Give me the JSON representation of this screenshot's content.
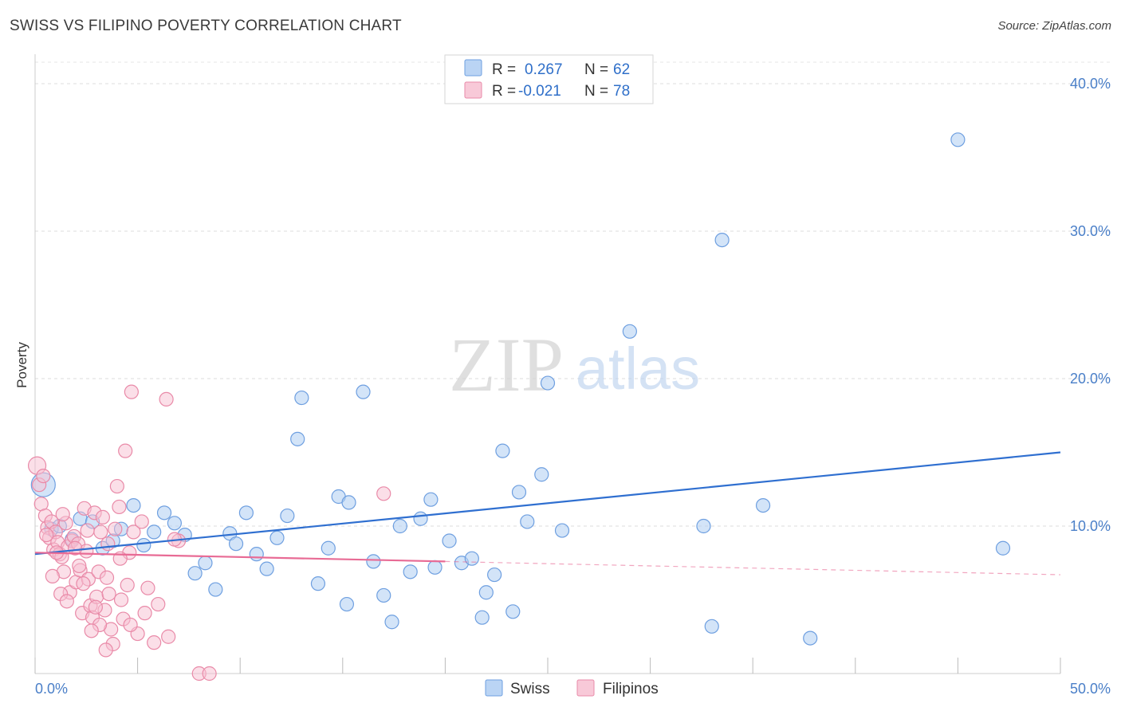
{
  "title": "SWISS VS FILIPINO POVERTY CORRELATION CHART",
  "source": "Source: ZipAtlas.com",
  "watermark": {
    "zip": "ZIP",
    "atlas": "atlas"
  },
  "chart_data": {
    "type": "scatter",
    "xlabel": "",
    "ylabel": "Poverty",
    "xlim": [
      0,
      50
    ],
    "ylim": [
      0,
      42
    ],
    "x_tick_labels": [
      "0.0%",
      "50.0%"
    ],
    "y_ticks": [
      10,
      20,
      30,
      40
    ],
    "y_tick_labels": [
      "10.0%",
      "20.0%",
      "30.0%",
      "40.0%"
    ],
    "grid": true,
    "legend_top": {
      "rows": [
        {
          "r_label": "R =",
          "r_value": "0.267",
          "n_label": "N =",
          "n_value": "62",
          "color": "#aecdf2",
          "stroke": "#6e9fe0"
        },
        {
          "r_label": "R =",
          "r_value": "-0.021",
          "n_label": "N =",
          "n_value": "78",
          "color": "#f7bfd1",
          "stroke": "#e98aa8"
        }
      ]
    },
    "series": [
      {
        "name": "Swiss",
        "color": "#aecdf2",
        "stroke": "#6e9fe0",
        "trend_color": "#2f6fd0",
        "trend": {
          "x": [
            0,
            50
          ],
          "y": [
            8.1,
            15.0
          ],
          "dashed_from": null
        },
        "points": [
          [
            0.4,
            12.8
          ],
          [
            0.8,
            9.8
          ],
          [
            1.2,
            10.0
          ],
          [
            1.8,
            9.1
          ],
          [
            2.2,
            10.5
          ],
          [
            2.8,
            10.3
          ],
          [
            3.3,
            8.5
          ],
          [
            3.8,
            9.0
          ],
          [
            4.2,
            9.8
          ],
          [
            4.8,
            11.4
          ],
          [
            5.3,
            8.7
          ],
          [
            5.8,
            9.6
          ],
          [
            6.3,
            10.9
          ],
          [
            6.8,
            10.2
          ],
          [
            7.3,
            9.4
          ],
          [
            7.8,
            6.8
          ],
          [
            8.3,
            7.5
          ],
          [
            8.8,
            5.7
          ],
          [
            9.5,
            9.5
          ],
          [
            9.8,
            8.8
          ],
          [
            10.3,
            10.9
          ],
          [
            10.8,
            8.1
          ],
          [
            11.3,
            7.1
          ],
          [
            11.8,
            9.2
          ],
          [
            12.3,
            10.7
          ],
          [
            12.8,
            15.9
          ],
          [
            13.0,
            18.7
          ],
          [
            13.8,
            6.1
          ],
          [
            14.3,
            8.5
          ],
          [
            14.8,
            12.0
          ],
          [
            15.2,
            4.7
          ],
          [
            15.3,
            11.6
          ],
          [
            16.0,
            19.1
          ],
          [
            16.5,
            7.6
          ],
          [
            17.0,
            5.3
          ],
          [
            17.4,
            3.5
          ],
          [
            17.8,
            10.0
          ],
          [
            18.3,
            6.9
          ],
          [
            18.8,
            10.5
          ],
          [
            19.3,
            11.8
          ],
          [
            19.5,
            7.2
          ],
          [
            20.2,
            9.0
          ],
          [
            20.8,
            7.5
          ],
          [
            21.3,
            7.8
          ],
          [
            21.8,
            3.8
          ],
          [
            22.0,
            5.5
          ],
          [
            22.4,
            6.7
          ],
          [
            22.8,
            15.1
          ],
          [
            23.3,
            4.2
          ],
          [
            23.6,
            12.3
          ],
          [
            24.0,
            10.3
          ],
          [
            24.7,
            13.5
          ],
          [
            25.0,
            19.7
          ],
          [
            25.7,
            9.7
          ],
          [
            29.0,
            23.2
          ],
          [
            32.6,
            10.0
          ],
          [
            33.0,
            3.2
          ],
          [
            33.5,
            29.4
          ],
          [
            35.5,
            11.4
          ],
          [
            37.8,
            2.4
          ],
          [
            45.0,
            36.2
          ],
          [
            47.2,
            8.5
          ]
        ]
      },
      {
        "name": "Filipinos",
        "color": "#f7bfd1",
        "stroke": "#e98aa8",
        "trend_color": "#e86b95",
        "trend": {
          "x": [
            0,
            50
          ],
          "y": [
            8.2,
            6.7
          ],
          "dashed_from": 20
        },
        "points": [
          [
            0.1,
            14.1
          ],
          [
            0.2,
            12.8
          ],
          [
            0.3,
            11.5
          ],
          [
            0.4,
            13.4
          ],
          [
            0.5,
            10.7
          ],
          [
            0.6,
            9.9
          ],
          [
            0.7,
            9.2
          ],
          [
            0.8,
            10.3
          ],
          [
            0.9,
            8.4
          ],
          [
            1.0,
            9.6
          ],
          [
            1.1,
            8.9
          ],
          [
            1.2,
            8.1
          ],
          [
            1.3,
            7.9
          ],
          [
            1.4,
            6.9
          ],
          [
            1.5,
            10.2
          ],
          [
            1.6,
            8.6
          ],
          [
            1.7,
            5.5
          ],
          [
            1.8,
            9.0
          ],
          [
            1.9,
            9.3
          ],
          [
            2.0,
            6.2
          ],
          [
            2.1,
            8.8
          ],
          [
            2.2,
            7.0
          ],
          [
            2.3,
            4.1
          ],
          [
            2.4,
            11.2
          ],
          [
            2.5,
            8.3
          ],
          [
            2.6,
            6.4
          ],
          [
            2.7,
            4.6
          ],
          [
            2.8,
            3.8
          ],
          [
            2.9,
            10.9
          ],
          [
            3.0,
            5.2
          ],
          [
            3.1,
            6.9
          ],
          [
            3.2,
            9.6
          ],
          [
            3.3,
            10.6
          ],
          [
            3.4,
            4.3
          ],
          [
            3.5,
            6.5
          ],
          [
            3.6,
            5.4
          ],
          [
            3.7,
            3.0
          ],
          [
            3.8,
            2.0
          ],
          [
            3.9,
            9.8
          ],
          [
            4.0,
            12.7
          ],
          [
            4.1,
            11.3
          ],
          [
            4.2,
            5.0
          ],
          [
            4.3,
            3.7
          ],
          [
            4.4,
            15.1
          ],
          [
            4.5,
            6.0
          ],
          [
            4.6,
            8.2
          ],
          [
            4.7,
            19.1
          ],
          [
            4.8,
            9.6
          ],
          [
            5.0,
            2.7
          ],
          [
            5.2,
            10.3
          ],
          [
            5.5,
            5.8
          ],
          [
            5.8,
            2.1
          ],
          [
            6.0,
            4.7
          ],
          [
            6.4,
            18.6
          ],
          [
            6.5,
            2.5
          ],
          [
            7.0,
            9.0
          ],
          [
            8.0,
            0.0
          ],
          [
            8.5,
            0.0
          ],
          [
            17.0,
            12.2
          ],
          [
            1.05,
            8.2
          ],
          [
            1.25,
            5.4
          ],
          [
            2.15,
            7.3
          ],
          [
            2.55,
            9.7
          ],
          [
            2.95,
            4.5
          ],
          [
            3.15,
            3.3
          ],
          [
            3.45,
            1.6
          ],
          [
            1.55,
            4.9
          ],
          [
            0.85,
            6.6
          ],
          [
            1.95,
            8.5
          ],
          [
            2.35,
            6.1
          ],
          [
            0.55,
            9.4
          ],
          [
            1.35,
            10.8
          ],
          [
            2.75,
            2.9
          ],
          [
            3.55,
            8.8
          ],
          [
            4.15,
            7.8
          ],
          [
            4.65,
            3.3
          ],
          [
            5.35,
            4.1
          ],
          [
            6.8,
            9.1
          ]
        ]
      }
    ]
  }
}
